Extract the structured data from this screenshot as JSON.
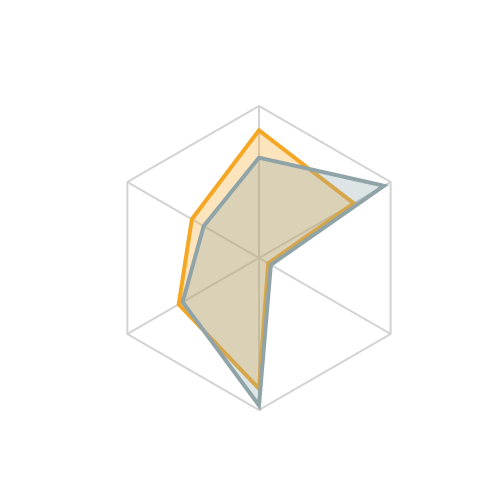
{
  "chart_data": {
    "type": "radar",
    "rlim": [
      0,
      100
    ],
    "rticks": [
      100
    ],
    "grid": true,
    "series": [
      {
        "color": "#f5a623",
        "values": [
          84,
          72,
          7,
          86,
          61,
          51
        ]
      },
      {
        "color": "#90a4a8",
        "values": [
          66,
          95,
          9,
          97,
          58,
          42
        ]
      }
    ]
  }
}
